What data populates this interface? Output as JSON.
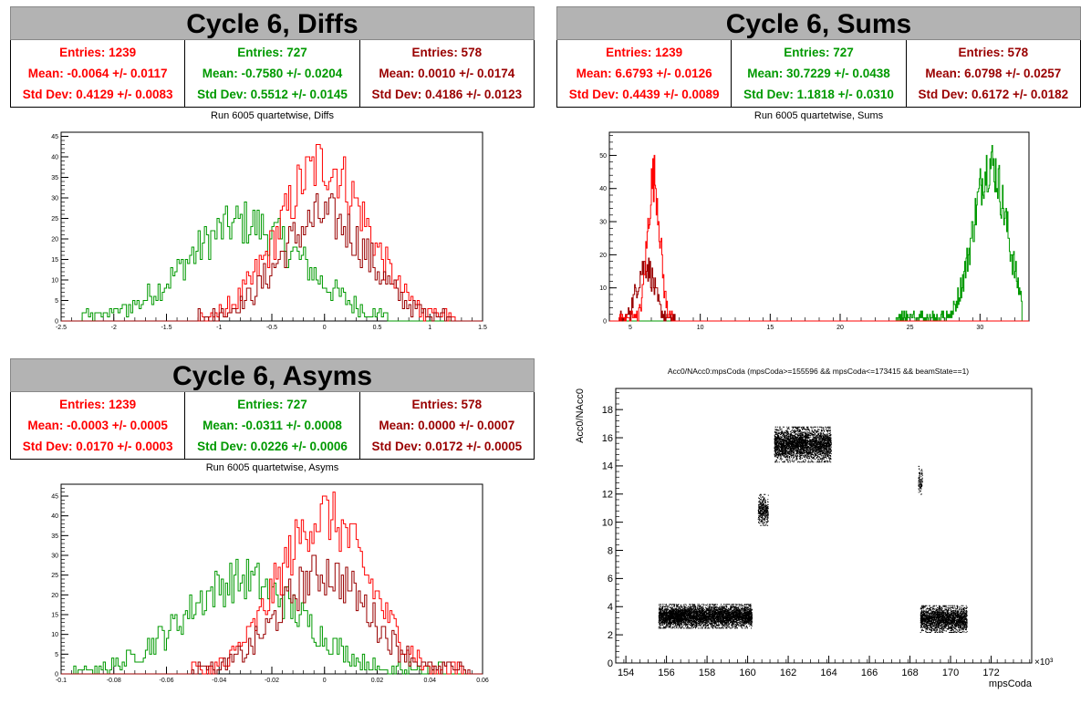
{
  "colors": {
    "red": "#ff0000",
    "green": "#009900",
    "darkred": "#990000"
  },
  "panels": {
    "diffs": {
      "title": "Cycle 6, Diffs",
      "stats": [
        {
          "entries": "Entries: 1239",
          "mean": "Mean: -0.0064 +/- 0.0117",
          "std": "Std Dev: 0.4129 +/- 0.0083",
          "color": "#ff0000"
        },
        {
          "entries": "Entries: 727",
          "mean": "Mean: -0.7580 +/- 0.0204",
          "std": "Std Dev: 0.5512 +/- 0.0145",
          "color": "#009900"
        },
        {
          "entries": "Entries: 578",
          "mean": "Mean: 0.0010 +/- 0.0174",
          "std": "Std Dev: 0.4186 +/- 0.0123",
          "color": "#990000"
        }
      ],
      "subtitle": "Run 6005 quartetwise, Diffs"
    },
    "sums": {
      "title": "Cycle 6, Sums",
      "stats": [
        {
          "entries": "Entries: 1239",
          "mean": "Mean: 6.6793 +/- 0.0126",
          "std": "Std Dev: 0.4439 +/- 0.0089",
          "color": "#ff0000"
        },
        {
          "entries": "Entries: 727",
          "mean": "Mean: 30.7229 +/- 0.0438",
          "std": "Std Dev: 1.1818 +/- 0.0310",
          "color": "#009900"
        },
        {
          "entries": "Entries: 578",
          "mean": "Mean: 6.0798 +/- 0.0257",
          "std": "Std Dev: 0.6172 +/- 0.0182",
          "color": "#990000"
        }
      ],
      "subtitle": "Run 6005 quartetwise, Sums"
    },
    "asyms": {
      "title": "Cycle 6, Asyms",
      "stats": [
        {
          "entries": "Entries: 1239",
          "mean": "Mean: -0.0003 +/- 0.0005",
          "std": "Std Dev: 0.0170 +/- 0.0003",
          "color": "#ff0000"
        },
        {
          "entries": "Entries: 727",
          "mean": "Mean: -0.0311 +/- 0.0008",
          "std": "Std Dev: 0.0226 +/- 0.0006",
          "color": "#009900"
        },
        {
          "entries": "Entries: 578",
          "mean": "Mean: 0.0000 +/- 0.0007",
          "std": "Std Dev: 0.0172 +/- 0.0005",
          "color": "#990000"
        }
      ],
      "subtitle": "Run 6005 quartetwise, Asyms"
    },
    "scatter": {
      "title": "Acc0/NAcc0:mpsCoda (mpsCoda>=155596 && mpsCoda<=173415 && beamState==1)",
      "xlabel": "mpsCoda",
      "ylabel": "Acc0/NAcc0",
      "exponent": "×10³"
    }
  },
  "chart_data": [
    {
      "type": "histogram",
      "name": "diffs",
      "xlim": [
        -2.5,
        1.5
      ],
      "ylim": [
        0,
        46
      ],
      "xticks": [
        "-2.5",
        "-2",
        "-1.5",
        "-1",
        "-0.5",
        "0",
        "0.5",
        "1",
        "1.5"
      ],
      "yticks": [
        "0",
        "5",
        "10",
        "15",
        "20",
        "25",
        "30",
        "35",
        "40",
        "45"
      ],
      "series": [
        {
          "color": "#009900",
          "mean": -0.758,
          "std": 0.5512,
          "peak": 28,
          "range": [
            -2.3,
            0.6
          ]
        },
        {
          "color": "#ff0000",
          "mean": -0.0064,
          "std": 0.4129,
          "peak": 45,
          "range": [
            -1.2,
            1.25
          ]
        },
        {
          "color": "#990000",
          "mean": 0.001,
          "std": 0.4186,
          "peak": 30,
          "range": [
            -1.2,
            1.25
          ]
        }
      ]
    },
    {
      "type": "histogram",
      "name": "sums",
      "xlim": [
        3.5,
        33.5
      ],
      "ylim": [
        0,
        57
      ],
      "xticks": [
        "5",
        "10",
        "15",
        "20",
        "25",
        "30"
      ],
      "yticks": [
        "0",
        "10",
        "20",
        "30",
        "40",
        "50"
      ],
      "series": [
        {
          "color": "#009900",
          "mean": 30.7229,
          "std": 1.1818,
          "peak": 56,
          "range": [
            24,
            33
          ]
        },
        {
          "color": "#990000",
          "mean": 6.0798,
          "std": 0.6172,
          "peak": 20,
          "range": [
            4.2,
            8.2
          ]
        },
        {
          "color": "#ff0000",
          "mean": 6.6793,
          "std": 0.4439,
          "peak": 51,
          "range": [
            4.2,
            8.2
          ]
        }
      ]
    },
    {
      "type": "histogram",
      "name": "asyms",
      "xlim": [
        -0.1,
        0.06
      ],
      "ylim": [
        0,
        48
      ],
      "xticks": [
        "-0.1",
        "-0.08",
        "-0.06",
        "-0.04",
        "-0.02",
        "0",
        "0.02",
        "0.04",
        "0.06"
      ],
      "yticks": [
        "0",
        "5",
        "10",
        "15",
        "20",
        "25",
        "30",
        "35",
        "40",
        "45"
      ],
      "series": [
        {
          "color": "#009900",
          "mean": -0.0311,
          "std": 0.0226,
          "peak": 28,
          "range": [
            -0.095,
            0.045
          ]
        },
        {
          "color": "#ff0000",
          "mean": -0.0003,
          "std": 0.017,
          "peak": 47,
          "range": [
            -0.05,
            0.055
          ]
        },
        {
          "color": "#990000",
          "mean": 0.0,
          "std": 0.0172,
          "peak": 30,
          "range": [
            -0.05,
            0.055
          ]
        }
      ]
    },
    {
      "type": "scatter",
      "name": "acc0-vs-mpscoda",
      "xlim": [
        153.5,
        174
      ],
      "ylim": [
        0,
        19.5
      ],
      "xticks": [
        "154",
        "156",
        "158",
        "160",
        "162",
        "164",
        "166",
        "168",
        "170",
        "172"
      ],
      "yticks": [
        "0",
        "2",
        "4",
        "6",
        "8",
        "10",
        "12",
        "14",
        "16",
        "18"
      ],
      "clusters": [
        {
          "x": [
            155.6,
            160.2
          ],
          "y": [
            2.5,
            4.2
          ],
          "density": 5200
        },
        {
          "x": [
            160.5,
            161.0
          ],
          "y": [
            9.8,
            12.0
          ],
          "density": 400
        },
        {
          "x": [
            161.3,
            164.1
          ],
          "y": [
            14.3,
            16.8
          ],
          "density": 3400
        },
        {
          "x": [
            168.4,
            168.6
          ],
          "y": [
            12.0,
            14.0
          ],
          "density": 100
        },
        {
          "x": [
            168.5,
            170.8
          ],
          "y": [
            2.2,
            4.1
          ],
          "density": 2400
        }
      ]
    }
  ]
}
